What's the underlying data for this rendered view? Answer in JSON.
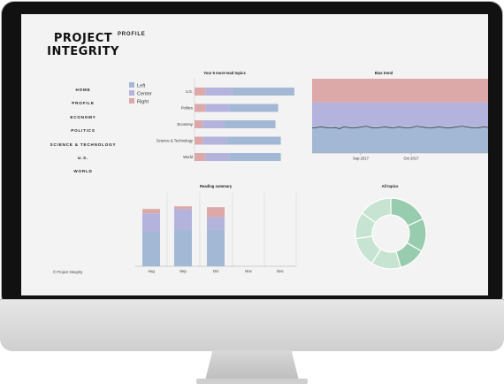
{
  "brand": {
    "line1": "PROJECT",
    "line2": "INTEGRITY"
  },
  "page_title": "PROFILE",
  "nav": [
    {
      "label": "HOME"
    },
    {
      "label": "PROFILE"
    },
    {
      "label": "ECONOMY"
    },
    {
      "label": "POLITICS"
    },
    {
      "label": "SCIENCE & TECHNOLOGY"
    },
    {
      "label": "U.S."
    },
    {
      "label": "WORLD"
    }
  ],
  "footer": "© Project Integrity",
  "colors": {
    "left": "#a3b8d4",
    "center": "#b3b3dd",
    "right": "#dca8a8",
    "green_dark": "#98ccae",
    "green_light": "#c7e4d3"
  },
  "chart_data": [
    {
      "type": "bar",
      "orientation": "horizontal",
      "stacked": true,
      "title": "Your 5 most-read topics",
      "categories": [
        "U.S.",
        "Politics",
        "Economy",
        "Science & Technology",
        "World"
      ],
      "legend": {
        "position": "top-left",
        "entries": [
          "Left",
          "Center",
          "Right"
        ]
      },
      "series": [
        {
          "name": "Right",
          "values": [
            4,
            4,
            3,
            3,
            4
          ]
        },
        {
          "name": "Center",
          "values": [
            10,
            9,
            8,
            9,
            9
          ]
        },
        {
          "name": "Left",
          "values": [
            23,
            18,
            19,
            20,
            19
          ]
        }
      ],
      "xlim": [
        0,
        40
      ]
    },
    {
      "type": "area",
      "stacked": true,
      "title": "Bias trend",
      "x_ticks": [
        "Sep 2017",
        "Oct 2017"
      ],
      "bands": [
        "Right",
        "Center",
        "Left"
      ],
      "line": [
        0.4,
        0.41,
        0.42,
        0.41,
        0.4,
        0.41,
        0.39,
        0.42,
        0.41,
        0.4,
        0.41,
        0.42,
        0.43,
        0.41,
        0.4,
        0.41,
        0.42,
        0.41,
        0.4,
        0.42,
        0.41,
        0.4,
        0.41,
        0.43,
        0.42,
        0.41,
        0.4,
        0.41,
        0.42,
        0.41,
        0.4,
        0.41,
        0.42,
        0.43,
        0.42,
        0.41,
        0.4,
        0.41,
        0.42,
        0.41
      ],
      "ylim": [
        0,
        1
      ]
    },
    {
      "type": "bar",
      "stacked": true,
      "title": "Reading summary",
      "categories": [
        "Aug",
        "Sep",
        "Oct",
        "Nov",
        "Dec"
      ],
      "series": [
        {
          "name": "Left",
          "values": [
            38,
            41,
            40,
            0,
            0
          ]
        },
        {
          "name": "Center",
          "values": [
            21,
            23,
            15,
            0,
            0
          ]
        },
        {
          "name": "Right",
          "values": [
            5,
            3,
            11,
            0,
            0
          ]
        }
      ],
      "ylim": [
        0,
        82
      ]
    },
    {
      "type": "pie",
      "donut": true,
      "title": "All topics",
      "values": [
        12,
        10,
        8,
        9,
        9,
        8,
        10
      ]
    }
  ]
}
